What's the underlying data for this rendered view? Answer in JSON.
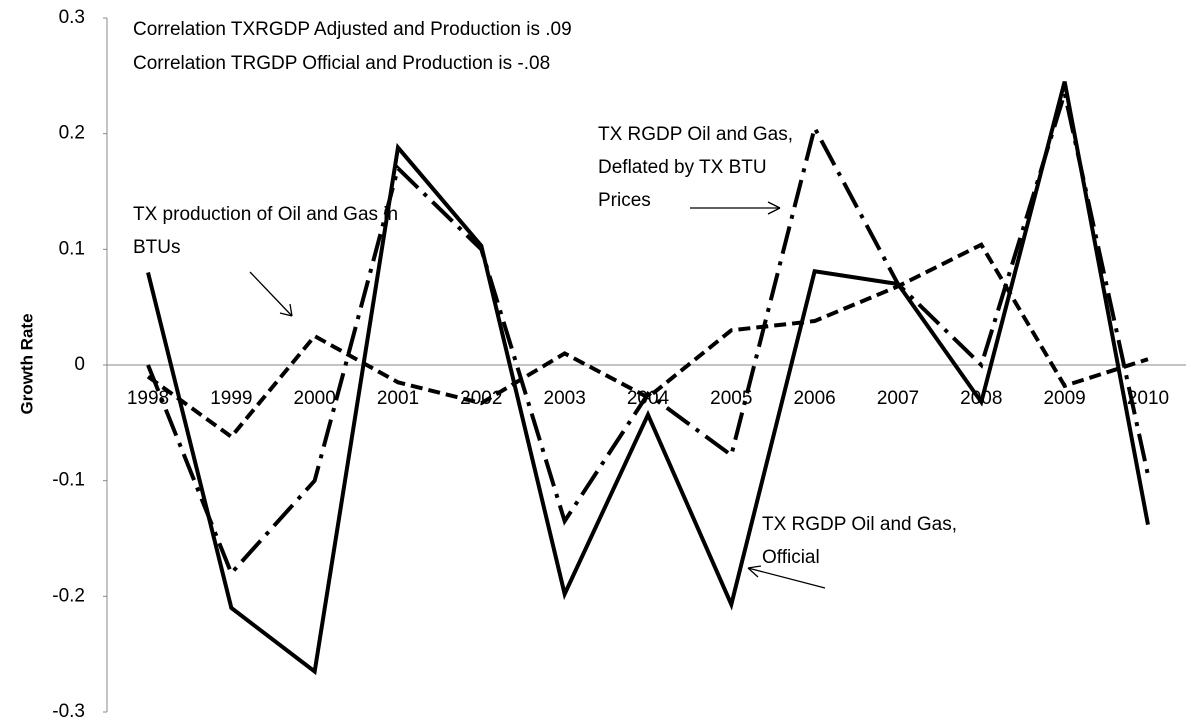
{
  "chart_data": {
    "type": "line",
    "annotations": [
      "Correlation TXRGDP Adjusted and Production is  .09",
      "Correlation TRGDP Official and Production is  -.08"
    ],
    "y_label": "Growth Rate",
    "categories": [
      "1998",
      "1999",
      "2000",
      "2001",
      "2002",
      "2003",
      "2004",
      "2005",
      "2006",
      "2007",
      "2008",
      "2009",
      "2010"
    ],
    "series": [
      {
        "name": "TX RGDP Oil and Gas, Official",
        "color": "#000000",
        "dash": "solid",
        "values": [
          0.08,
          -0.21,
          -0.265,
          0.188,
          0.103,
          -0.198,
          -0.043,
          -0.207,
          0.081,
          0.07,
          -0.032,
          0.245,
          -0.138
        ]
      },
      {
        "name": "TX RGDP Oil and Gas, Deflated by TX BTU Prices",
        "color": "#000000",
        "dash": "dashdot",
        "values": [
          0.0,
          -0.18,
          -0.1,
          0.17,
          0.1,
          -0.135,
          -0.025,
          -0.078,
          0.205,
          0.07,
          0.0,
          0.235,
          -0.095
        ]
      },
      {
        "name": "TX production of Oil and Gas in BTUs",
        "color": "#000000",
        "dash": "dashed",
        "values": [
          -0.01,
          -0.062,
          0.025,
          -0.015,
          -0.033,
          0.01,
          -0.028,
          0.03,
          0.038,
          0.068,
          0.104,
          -0.018,
          0.005
        ]
      }
    ],
    "ylim": [
      -0.3,
      0.3
    ],
    "yticks": [
      {
        "value": 0.3,
        "label": "0.3"
      },
      {
        "value": 0.2,
        "label": "0.2"
      },
      {
        "value": 0.1,
        "label": "0.1"
      },
      0,
      {
        "value": -0.1,
        "label": "-0.1"
      },
      {
        "value": -0.2,
        "label": "-0.2"
      },
      {
        "value": -0.3,
        "label": "-0.3"
      }
    ],
    "grid": false
  }
}
